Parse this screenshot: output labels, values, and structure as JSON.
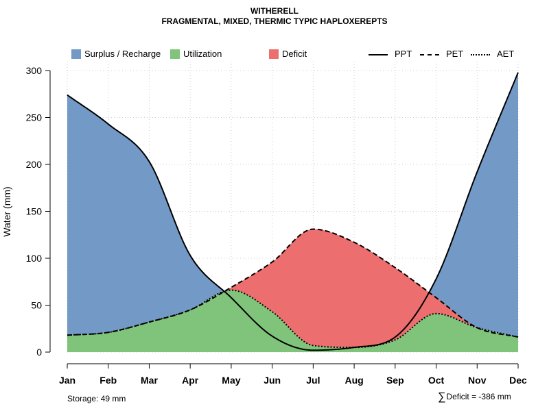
{
  "title": "WITHERELL",
  "subtitle": "FRAGMENTAL, MIXED, THERMIC TYPIC HAPLOXEREPTS",
  "legend": {
    "surplus": "Surplus / Recharge",
    "utilization": "Utilization",
    "deficit": "Deficit",
    "ppt": "PPT",
    "pet": "PET",
    "aet": "AET"
  },
  "colors": {
    "surplus": "#7399c6",
    "utilization": "#7fc47a",
    "deficit": "#ec6e6e",
    "line": "#000000",
    "grid": "#cccccc"
  },
  "storage_label": "Storage: 49 mm",
  "deficit_symbol": "∑",
  "deficit_label": "Deficit = -386 mm",
  "chart_data": {
    "type": "area",
    "title": "WITHERELL",
    "subtitle": "FRAGMENTAL, MIXED, THERMIC TYPIC HAPLOXEREPTS",
    "xlabel": "",
    "ylabel": "Water (mm)",
    "categories": [
      "Jan",
      "Feb",
      "Mar",
      "Apr",
      "May",
      "Jun",
      "Jul",
      "Aug",
      "Sep",
      "Oct",
      "Nov",
      "Dec"
    ],
    "ylim": [
      0,
      300
    ],
    "yticks": [
      0,
      50,
      100,
      150,
      200,
      250,
      300
    ],
    "grid": true,
    "legend_position": "top",
    "series": [
      {
        "name": "PPT",
        "style": "solid",
        "values": [
          274,
          243,
          203,
          103,
          58,
          17,
          2,
          5,
          16,
          78,
          192,
          298
        ]
      },
      {
        "name": "PET",
        "style": "dashed",
        "values": [
          18,
          21,
          32,
          45,
          69,
          96,
          131,
          117,
          90,
          58,
          26,
          16
        ]
      },
      {
        "name": "AET",
        "style": "dotted",
        "values": [
          18,
          21,
          32,
          45,
          66,
          43,
          7,
          5,
          13,
          41,
          26,
          16
        ]
      }
    ],
    "regions": [
      "Surplus / Recharge",
      "Utilization",
      "Deficit"
    ],
    "annotations": [
      "Storage: 49 mm",
      "∑ Deficit = -386 mm"
    ]
  }
}
